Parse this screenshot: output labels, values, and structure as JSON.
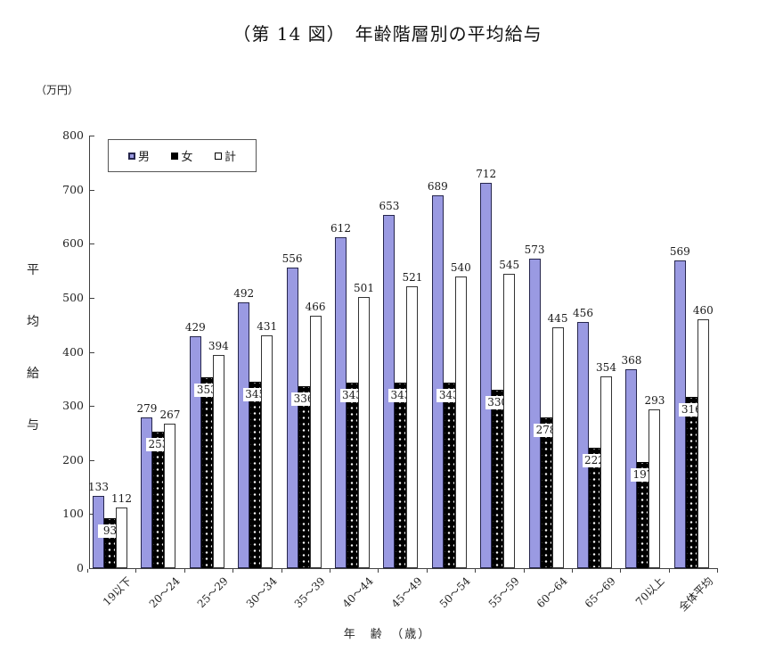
{
  "chart_data": {
    "type": "bar",
    "title": "（第 14 図）　年齢階層別の平均給与",
    "unit_label": "（万円）",
    "ylabel": "平均給与",
    "xlabel": "年　齢　（歳）",
    "categories": [
      "19以下",
      "20～24",
      "25～29",
      "30～34",
      "35～39",
      "40～44",
      "45～49",
      "50～54",
      "55～59",
      "60～64",
      "65～69",
      "70以上",
      "全体平均"
    ],
    "series": [
      {
        "name": "男",
        "values": [
          133,
          279,
          429,
          492,
          556,
          612,
          653,
          689,
          712,
          573,
          456,
          368,
          569
        ],
        "color": "#9a9ae2",
        "pattern": "solid"
      },
      {
        "name": "女",
        "values": [
          93,
          253,
          353,
          345,
          336,
          343,
          343,
          343,
          330,
          278,
          222,
          197,
          316
        ],
        "color": "#000000",
        "pattern": "dots"
      },
      {
        "name": "計",
        "values": [
          112,
          267,
          394,
          431,
          466,
          501,
          521,
          540,
          545,
          445,
          354,
          293,
          460
        ],
        "color": "#ffffff",
        "pattern": "outline"
      }
    ],
    "ylim": [
      0,
      800
    ],
    "yticks": [
      0,
      100,
      200,
      300,
      400,
      500,
      600,
      700,
      800
    ],
    "grid": false,
    "legend_position": "top-left",
    "value_labels": true,
    "axis_color": "#404040",
    "bar_border_color": "#26264d"
  }
}
